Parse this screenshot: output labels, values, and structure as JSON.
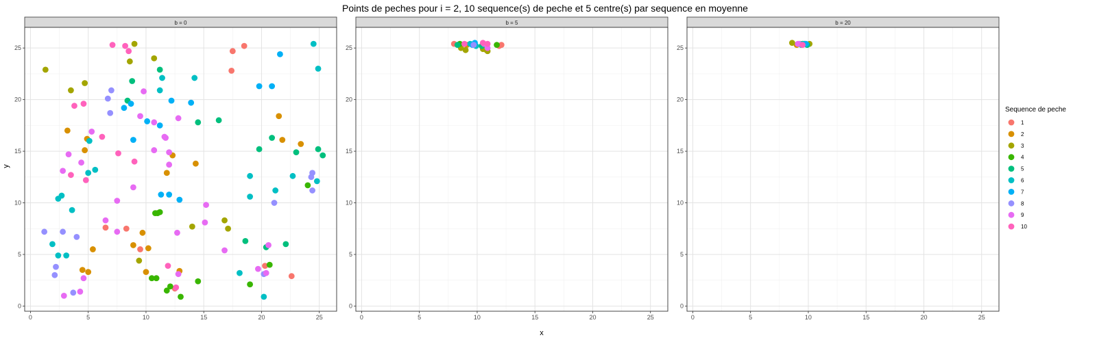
{
  "chart_data": {
    "type": "scatter",
    "title": "Points de peches pour i = 2, 10 sequence(s) de peche et 5 centre(s) par sequence en moyenne",
    "xlabel": "x",
    "ylabel": "y",
    "xlim": [
      -0.5,
      26.5
    ],
    "ylim": [
      -0.5,
      27
    ],
    "x_ticks": [
      "0",
      "5",
      "10",
      "15",
      "20",
      "25"
    ],
    "y_ticks": [
      "0",
      "5",
      "10",
      "15",
      "20",
      "25"
    ],
    "grid": true,
    "legend": {
      "title": "Sequence de peche",
      "position": "right",
      "entries": [
        "1",
        "2",
        "3",
        "4",
        "5",
        "6",
        "7",
        "8",
        "9",
        "10"
      ]
    },
    "series_colors": [
      "#F8766D",
      "#D89000",
      "#A3A500",
      "#39B600",
      "#00BF7D",
      "#00BFC4",
      "#00B0F6",
      "#9590FF",
      "#E76BF3",
      "#FF62BC"
    ],
    "panels": [
      {
        "strip": "b = 0",
        "points": [
          {
            "s": 1,
            "x": 17.5,
            "y": 24.7
          },
          {
            "s": 1,
            "x": 18.5,
            "y": 25.2
          },
          {
            "s": 1,
            "x": 17.4,
            "y": 22.8
          },
          {
            "s": 1,
            "x": 8.3,
            "y": 7.5
          },
          {
            "s": 1,
            "x": 9.5,
            "y": 5.5
          },
          {
            "s": 1,
            "x": 6.5,
            "y": 7.6
          },
          {
            "s": 1,
            "x": 22.6,
            "y": 2.9
          },
          {
            "s": 1,
            "x": 12.5,
            "y": 1.7
          },
          {
            "s": 1,
            "x": 20.3,
            "y": 3.9
          },
          {
            "s": 2,
            "x": 4.7,
            "y": 15.1
          },
          {
            "s": 2,
            "x": 4.9,
            "y": 16.2
          },
          {
            "s": 2,
            "x": 3.2,
            "y": 17.0
          },
          {
            "s": 2,
            "x": 12.3,
            "y": 14.6
          },
          {
            "s": 2,
            "x": 14.3,
            "y": 13.8
          },
          {
            "s": 2,
            "x": 11.8,
            "y": 12.9
          },
          {
            "s": 2,
            "x": 21.5,
            "y": 18.4
          },
          {
            "s": 2,
            "x": 21.8,
            "y": 16.1
          },
          {
            "s": 2,
            "x": 23.4,
            "y": 15.7
          },
          {
            "s": 2,
            "x": 9.7,
            "y": 7.1
          },
          {
            "s": 2,
            "x": 10.2,
            "y": 5.6
          },
          {
            "s": 2,
            "x": 8.9,
            "y": 5.9
          },
          {
            "s": 2,
            "x": 5.4,
            "y": 5.5
          },
          {
            "s": 2,
            "x": 4.5,
            "y": 3.5
          },
          {
            "s": 2,
            "x": 5.0,
            "y": 3.3
          },
          {
            "s": 2,
            "x": 10.0,
            "y": 3.3
          },
          {
            "s": 2,
            "x": 12.9,
            "y": 3.4
          },
          {
            "s": 3,
            "x": 1.3,
            "y": 22.9
          },
          {
            "s": 3,
            "x": 3.5,
            "y": 20.9
          },
          {
            "s": 3,
            "x": 4.7,
            "y": 21.6
          },
          {
            "s": 3,
            "x": 9.0,
            "y": 25.4
          },
          {
            "s": 3,
            "x": 8.6,
            "y": 23.7
          },
          {
            "s": 3,
            "x": 10.7,
            "y": 24.0
          },
          {
            "s": 3,
            "x": 9.4,
            "y": 4.4
          },
          {
            "s": 3,
            "x": 14.0,
            "y": 7.7
          },
          {
            "s": 3,
            "x": 16.8,
            "y": 8.3
          },
          {
            "s": 3,
            "x": 17.1,
            "y": 7.5
          },
          {
            "s": 4,
            "x": 10.8,
            "y": 9.0
          },
          {
            "s": 4,
            "x": 11.0,
            "y": 9.0
          },
          {
            "s": 4,
            "x": 11.2,
            "y": 9.1
          },
          {
            "s": 4,
            "x": 10.5,
            "y": 2.7
          },
          {
            "s": 4,
            "x": 10.9,
            "y": 2.7
          },
          {
            "s": 4,
            "x": 12.1,
            "y": 1.9
          },
          {
            "s": 4,
            "x": 11.8,
            "y": 1.5
          },
          {
            "s": 4,
            "x": 13.0,
            "y": 0.9
          },
          {
            "s": 4,
            "x": 14.5,
            "y": 2.4
          },
          {
            "s": 4,
            "x": 19.0,
            "y": 2.1
          },
          {
            "s": 4,
            "x": 20.7,
            "y": 4.0
          },
          {
            "s": 4,
            "x": 24.0,
            "y": 11.7
          },
          {
            "s": 5,
            "x": 8.8,
            "y": 21.8
          },
          {
            "s": 5,
            "x": 8.4,
            "y": 19.9
          },
          {
            "s": 5,
            "x": 11.2,
            "y": 22.9
          },
          {
            "s": 5,
            "x": 14.5,
            "y": 17.8
          },
          {
            "s": 5,
            "x": 16.3,
            "y": 18.0
          },
          {
            "s": 5,
            "x": 19.8,
            "y": 15.2
          },
          {
            "s": 5,
            "x": 20.9,
            "y": 16.3
          },
          {
            "s": 5,
            "x": 23.0,
            "y": 14.9
          },
          {
            "s": 5,
            "x": 24.9,
            "y": 15.2
          },
          {
            "s": 5,
            "x": 25.3,
            "y": 14.6
          },
          {
            "s": 5,
            "x": 18.6,
            "y": 6.3
          },
          {
            "s": 5,
            "x": 20.4,
            "y": 5.7
          },
          {
            "s": 5,
            "x": 22.1,
            "y": 6.0
          },
          {
            "s": 6,
            "x": 11.4,
            "y": 22.1
          },
          {
            "s": 6,
            "x": 14.2,
            "y": 22.1
          },
          {
            "s": 6,
            "x": 11.2,
            "y": 20.9
          },
          {
            "s": 6,
            "x": 24.5,
            "y": 25.4
          },
          {
            "s": 6,
            "x": 24.9,
            "y": 23.0
          },
          {
            "s": 6,
            "x": 5.1,
            "y": 16.0
          },
          {
            "s": 6,
            "x": 5.6,
            "y": 13.2
          },
          {
            "s": 6,
            "x": 5.0,
            "y": 12.9
          },
          {
            "s": 6,
            "x": 2.7,
            "y": 10.7
          },
          {
            "s": 6,
            "x": 2.4,
            "y": 10.4
          },
          {
            "s": 6,
            "x": 3.6,
            "y": 9.3
          },
          {
            "s": 6,
            "x": 1.9,
            "y": 6.0
          },
          {
            "s": 6,
            "x": 2.4,
            "y": 4.9
          },
          {
            "s": 6,
            "x": 3.1,
            "y": 4.9
          },
          {
            "s": 6,
            "x": 19.0,
            "y": 12.6
          },
          {
            "s": 6,
            "x": 19.0,
            "y": 10.6
          },
          {
            "s": 6,
            "x": 21.2,
            "y": 11.2
          },
          {
            "s": 6,
            "x": 22.7,
            "y": 12.6
          },
          {
            "s": 6,
            "x": 24.8,
            "y": 12.1
          },
          {
            "s": 6,
            "x": 18.1,
            "y": 3.2
          },
          {
            "s": 6,
            "x": 20.2,
            "y": 0.9
          },
          {
            "s": 7,
            "x": 12.2,
            "y": 19.9
          },
          {
            "s": 7,
            "x": 13.9,
            "y": 19.7
          },
          {
            "s": 7,
            "x": 8.7,
            "y": 19.6
          },
          {
            "s": 7,
            "x": 8.1,
            "y": 19.2
          },
          {
            "s": 7,
            "x": 10.1,
            "y": 17.9
          },
          {
            "s": 7,
            "x": 11.2,
            "y": 17.5
          },
          {
            "s": 7,
            "x": 8.9,
            "y": 16.1
          },
          {
            "s": 7,
            "x": 21.6,
            "y": 24.4
          },
          {
            "s": 7,
            "x": 19.8,
            "y": 21.3
          },
          {
            "s": 7,
            "x": 20.9,
            "y": 21.3
          },
          {
            "s": 7,
            "x": 11.3,
            "y": 10.8
          },
          {
            "s": 7,
            "x": 12.0,
            "y": 10.8
          },
          {
            "s": 7,
            "x": 12.9,
            "y": 10.3
          },
          {
            "s": 8,
            "x": 7.0,
            "y": 20.9
          },
          {
            "s": 8,
            "x": 6.7,
            "y": 20.1
          },
          {
            "s": 8,
            "x": 6.9,
            "y": 18.7
          },
          {
            "s": 8,
            "x": 1.2,
            "y": 7.2
          },
          {
            "s": 8,
            "x": 2.8,
            "y": 7.2
          },
          {
            "s": 8,
            "x": 4.0,
            "y": 6.7
          },
          {
            "s": 8,
            "x": 2.2,
            "y": 3.8
          },
          {
            "s": 8,
            "x": 2.1,
            "y": 3.0
          },
          {
            "s": 8,
            "x": 3.7,
            "y": 1.3
          },
          {
            "s": 8,
            "x": 24.4,
            "y": 12.9
          },
          {
            "s": 8,
            "x": 24.3,
            "y": 12.5
          },
          {
            "s": 8,
            "x": 24.4,
            "y": 11.2
          },
          {
            "s": 8,
            "x": 21.1,
            "y": 10.0
          },
          {
            "s": 8,
            "x": 20.2,
            "y": 3.1
          },
          {
            "s": 9,
            "x": 9.8,
            "y": 20.8
          },
          {
            "s": 9,
            "x": 9.5,
            "y": 18.4
          },
          {
            "s": 9,
            "x": 10.7,
            "y": 17.8
          },
          {
            "s": 9,
            "x": 11.7,
            "y": 16.3
          },
          {
            "s": 9,
            "x": 11.6,
            "y": 16.4
          },
          {
            "s": 9,
            "x": 12.8,
            "y": 18.2
          },
          {
            "s": 9,
            "x": 5.3,
            "y": 16.9
          },
          {
            "s": 9,
            "x": 3.3,
            "y": 14.7
          },
          {
            "s": 9,
            "x": 2.8,
            "y": 13.1
          },
          {
            "s": 9,
            "x": 4.4,
            "y": 13.9
          },
          {
            "s": 9,
            "x": 10.7,
            "y": 15.1
          },
          {
            "s": 9,
            "x": 12.0,
            "y": 14.9
          },
          {
            "s": 9,
            "x": 12.0,
            "y": 13.7
          },
          {
            "s": 9,
            "x": 8.9,
            "y": 11.5
          },
          {
            "s": 9,
            "x": 7.5,
            "y": 10.2
          },
          {
            "s": 9,
            "x": 6.5,
            "y": 8.3
          },
          {
            "s": 9,
            "x": 7.5,
            "y": 7.2
          },
          {
            "s": 9,
            "x": 15.2,
            "y": 9.8
          },
          {
            "s": 9,
            "x": 15.1,
            "y": 8.1
          },
          {
            "s": 9,
            "x": 12.7,
            "y": 7.1
          },
          {
            "s": 9,
            "x": 16.8,
            "y": 5.4
          },
          {
            "s": 9,
            "x": 20.6,
            "y": 5.9
          },
          {
            "s": 9,
            "x": 19.7,
            "y": 3.6
          },
          {
            "s": 9,
            "x": 20.4,
            "y": 3.2
          },
          {
            "s": 9,
            "x": 4.6,
            "y": 2.7
          },
          {
            "s": 9,
            "x": 4.3,
            "y": 1.4
          },
          {
            "s": 9,
            "x": 2.9,
            "y": 1.0
          },
          {
            "s": 9,
            "x": 12.8,
            "y": 3.1
          },
          {
            "s": 10,
            "x": 7.1,
            "y": 25.3
          },
          {
            "s": 10,
            "x": 8.2,
            "y": 25.2
          },
          {
            "s": 10,
            "x": 8.5,
            "y": 24.7
          },
          {
            "s": 10,
            "x": 4.6,
            "y": 19.6
          },
          {
            "s": 10,
            "x": 3.8,
            "y": 19.4
          },
          {
            "s": 10,
            "x": 6.2,
            "y": 16.4
          },
          {
            "s": 10,
            "x": 3.5,
            "y": 12.7
          },
          {
            "s": 10,
            "x": 4.8,
            "y": 12.2
          },
          {
            "s": 10,
            "x": 7.6,
            "y": 14.8
          },
          {
            "s": 10,
            "x": 9.0,
            "y": 14.0
          },
          {
            "s": 10,
            "x": 11.9,
            "y": 3.9
          },
          {
            "s": 10,
            "x": 12.6,
            "y": 1.8
          }
        ]
      },
      {
        "strip": "b = 5",
        "points": [
          {
            "s": 1,
            "x": 8.0,
            "y": 25.4
          },
          {
            "s": 1,
            "x": 11.9,
            "y": 25.2
          },
          {
            "s": 1,
            "x": 12.1,
            "y": 25.3
          },
          {
            "s": 2,
            "x": 9.1,
            "y": 25.3
          },
          {
            "s": 2,
            "x": 10.8,
            "y": 24.8
          },
          {
            "s": 3,
            "x": 8.6,
            "y": 25.0
          },
          {
            "s": 3,
            "x": 9.0,
            "y": 24.8
          },
          {
            "s": 3,
            "x": 10.5,
            "y": 24.9
          },
          {
            "s": 3,
            "x": 10.9,
            "y": 24.7
          },
          {
            "s": 4,
            "x": 8.5,
            "y": 25.4
          },
          {
            "s": 4,
            "x": 11.7,
            "y": 25.3
          },
          {
            "s": 5,
            "x": 8.3,
            "y": 25.3
          },
          {
            "s": 5,
            "x": 10.4,
            "y": 25.2
          },
          {
            "s": 6,
            "x": 9.4,
            "y": 25.4
          },
          {
            "s": 6,
            "x": 9.9,
            "y": 25.2
          },
          {
            "s": 7,
            "x": 9.6,
            "y": 25.3
          },
          {
            "s": 7,
            "x": 9.8,
            "y": 25.5
          },
          {
            "s": 8,
            "x": 9.7,
            "y": 25.3
          },
          {
            "s": 9,
            "x": 10.6,
            "y": 25.4
          },
          {
            "s": 9,
            "x": 10.9,
            "y": 25.0
          },
          {
            "s": 10,
            "x": 8.9,
            "y": 25.4
          },
          {
            "s": 10,
            "x": 10.5,
            "y": 25.5
          },
          {
            "s": 10,
            "x": 10.9,
            "y": 25.4
          }
        ]
      },
      {
        "strip": "b = 20",
        "points": [
          {
            "s": 1,
            "x": 9.3,
            "y": 25.4
          },
          {
            "s": 2,
            "x": 9.0,
            "y": 25.3
          },
          {
            "s": 3,
            "x": 8.6,
            "y": 25.5
          },
          {
            "s": 3,
            "x": 10.1,
            "y": 25.4
          },
          {
            "s": 4,
            "x": 9.7,
            "y": 25.4
          },
          {
            "s": 5,
            "x": 9.9,
            "y": 25.3
          },
          {
            "s": 5,
            "x": 9.5,
            "y": 25.4
          },
          {
            "s": 6,
            "x": 9.4,
            "y": 25.3
          },
          {
            "s": 6,
            "x": 9.6,
            "y": 25.4
          },
          {
            "s": 7,
            "x": 9.8,
            "y": 25.4
          },
          {
            "s": 8,
            "x": 9.2,
            "y": 25.4
          },
          {
            "s": 9,
            "x": 9.1,
            "y": 25.4
          },
          {
            "s": 10,
            "x": 9.5,
            "y": 25.3
          }
        ]
      }
    ]
  }
}
